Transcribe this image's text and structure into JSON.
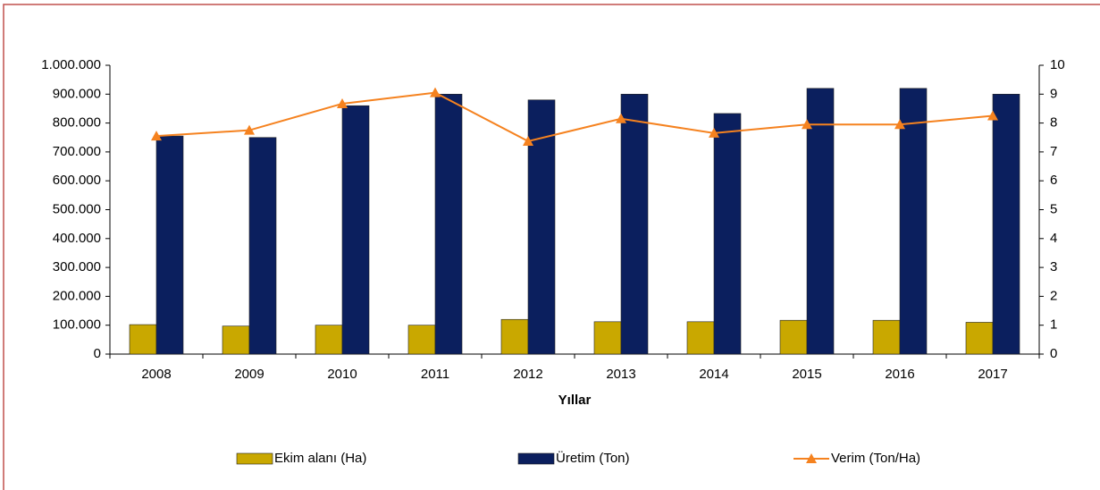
{
  "chart_data": {
    "type": "bar_line",
    "x_label": "Yıllar",
    "categories": [
      "2008",
      "2009",
      "2010",
      "2011",
      "2012",
      "2013",
      "2014",
      "2015",
      "2016",
      "2017"
    ],
    "series": [
      {
        "name": "Ekim alanı (Ha)",
        "type": "bar",
        "color": "#c9a800",
        "values": [
          102000,
          97000,
          100000,
          100000,
          120000,
          112000,
          112000,
          117000,
          117000,
          110000
        ]
      },
      {
        "name": "Üretim (Ton)",
        "type": "bar",
        "color": "#0b1f5e",
        "values": [
          755000,
          750000,
          860000,
          900000,
          880000,
          900000,
          833000,
          920000,
          920000,
          900000
        ]
      },
      {
        "name": "Verim (Ton/Ha)",
        "type": "line",
        "axis": "y2",
        "color": "#f5821f",
        "values": [
          7.55,
          7.75,
          8.67,
          9.05,
          7.37,
          8.15,
          7.65,
          7.95,
          7.95,
          8.25
        ]
      }
    ],
    "ylim": [
      0,
      1000000
    ],
    "yticks": [
      0,
      {
        "value": 100000,
        "label": "100.000"
      },
      {
        "value": 200000,
        "label": "200.000"
      },
      {
        "value": 300000,
        "label": "300.000"
      },
      {
        "value": 400000,
        "label": "400.000"
      },
      {
        "value": 500000,
        "label": "500.000"
      },
      {
        "value": 600000,
        "label": "600.000"
      },
      {
        "value": 700000,
        "label": "700.000"
      },
      {
        "value": 800000,
        "label": "800.000"
      },
      {
        "value": 900000,
        "label": "900.000"
      },
      {
        "value": 1000000,
        "label": "1.000.000"
      }
    ],
    "y2lim": [
      0,
      10
    ],
    "y2ticks": [
      0,
      1,
      2,
      3,
      4,
      5,
      6,
      7,
      8,
      9,
      10
    ],
    "grid": false,
    "legend": "bottom"
  }
}
